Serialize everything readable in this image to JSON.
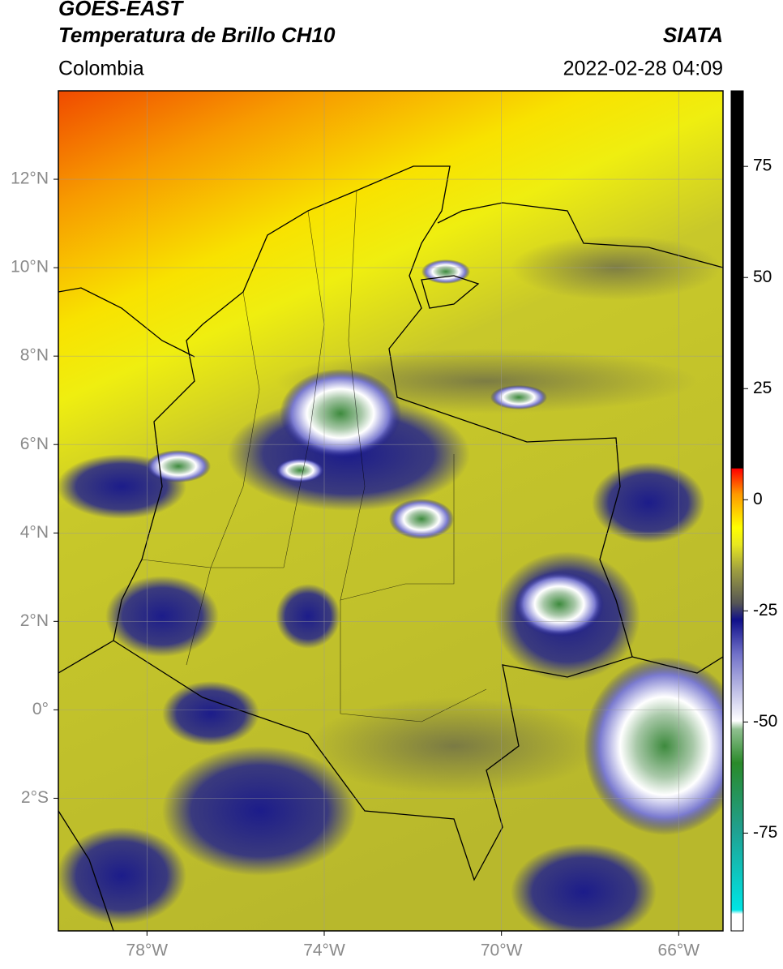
{
  "header": {
    "satellite": "GOES-EAST",
    "product": "Temperatura de Brillo CH10",
    "source": "SIATA",
    "region": "Colombia",
    "datetime": "2022-02-28 04:09"
  },
  "map": {
    "lonlim": [
      -80,
      -65
    ],
    "latlim": [
      -5,
      14
    ],
    "lon_ticks": [
      {
        "value": -78,
        "label": "78°W"
      },
      {
        "value": -74,
        "label": "74°W"
      },
      {
        "value": -70,
        "label": "70°W"
      },
      {
        "value": -66,
        "label": "66°W"
      }
    ],
    "lat_ticks": [
      {
        "value": 12,
        "label": "12°N"
      },
      {
        "value": 10,
        "label": "10°N"
      },
      {
        "value": 8,
        "label": "8°N"
      },
      {
        "value": 6,
        "label": "6°N"
      },
      {
        "value": 4,
        "label": "4°N"
      },
      {
        "value": 2,
        "label": "2°N"
      },
      {
        "value": 0,
        "label": "0°"
      },
      {
        "value": -2,
        "label": "2°S"
      }
    ]
  },
  "colorbar": {
    "lim": [
      -97,
      92
    ],
    "ticks": [
      75,
      50,
      25,
      0,
      -25,
      -50,
      -75
    ]
  }
}
